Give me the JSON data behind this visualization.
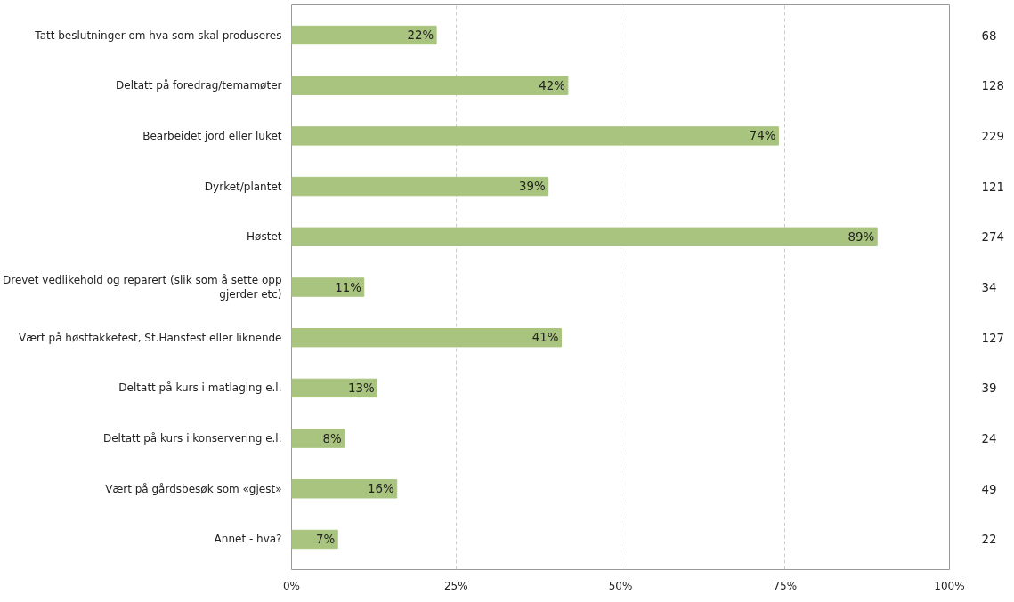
{
  "chart_data": {
    "type": "bar",
    "orientation": "horizontal",
    "categories": [
      "Tatt beslutninger om hva som skal produseres",
      "Deltatt på foredrag/temamøter",
      "Bearbeidet jord eller luket",
      "Dyrket/plantet",
      "Høstet",
      "Drevet vedlikehold og reparert (slik som å sette opp gjerder etc)",
      "Vært på høsttakkefest, St.Hansfest eller liknende",
      "Deltatt på kurs i matlaging e.l.",
      "Deltatt på kurs i konservering e.l.",
      "Vært på gårdsbesøk som «gjest»",
      "Annet - hva?"
    ],
    "values": [
      22,
      42,
      74,
      39,
      89,
      11,
      41,
      13,
      8,
      16,
      7
    ],
    "value_labels": [
      "22%",
      "42%",
      "74%",
      "39%",
      "89%",
      "11%",
      "41%",
      "13%",
      "8%",
      "16%",
      "7%"
    ],
    "color": "#a9c47f",
    "xlim": [
      0,
      100
    ],
    "xticks": [
      {
        "value": 0,
        "label": "0%"
      },
      {
        "value": 25,
        "label": "25%"
      },
      {
        "value": 50,
        "label": "50%"
      },
      {
        "value": 75,
        "label": "75%"
      },
      {
        "value": 100,
        "label": "100%"
      }
    ],
    "grid": "x",
    "annotations": [
      "68",
      "128",
      "229",
      "121",
      "274",
      "34",
      "127",
      "39",
      "24",
      "49",
      "22"
    ]
  }
}
